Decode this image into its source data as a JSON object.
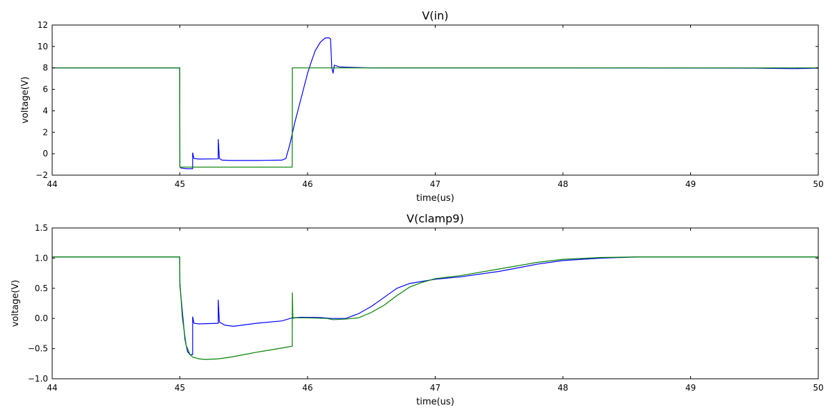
{
  "chart_data": [
    {
      "type": "line",
      "title": "V(in)",
      "xlabel": "time(us)",
      "ylabel": "voltage(V)",
      "xlim": [
        44,
        50
      ],
      "ylim": [
        -2,
        12
      ],
      "xticks": [
        "44",
        "45",
        "46",
        "47",
        "48",
        "49",
        "50"
      ],
      "yticks": [
        "−2",
        "0",
        "2",
        "4",
        "6",
        "8",
        "10",
        "12"
      ],
      "grid": false,
      "series": [
        {
          "color": "#0000ff",
          "points": [
            [
              44.0,
              8.0
            ],
            [
              44.999,
              8.0
            ],
            [
              45.0,
              -1.2
            ],
            [
              45.01,
              -1.35
            ],
            [
              45.05,
              -1.4
            ],
            [
              45.1,
              -1.4
            ],
            [
              45.1,
              0.1
            ],
            [
              45.11,
              -0.45
            ],
            [
              45.15,
              -0.5
            ],
            [
              45.3,
              -0.48
            ],
            [
              45.3,
              1.35
            ],
            [
              45.31,
              -0.45
            ],
            [
              45.33,
              -0.6
            ],
            [
              45.4,
              -0.63
            ],
            [
              45.6,
              -0.63
            ],
            [
              45.8,
              -0.6
            ],
            [
              45.83,
              -0.45
            ],
            [
              45.86,
              0.8
            ],
            [
              45.9,
              2.9
            ],
            [
              45.95,
              5.2
            ],
            [
              46.0,
              7.5
            ],
            [
              46.03,
              8.6
            ],
            [
              46.06,
              9.6
            ],
            [
              46.1,
              10.4
            ],
            [
              46.14,
              10.8
            ],
            [
              46.17,
              10.8
            ],
            [
              46.18,
              10.7
            ],
            [
              46.19,
              8.0
            ],
            [
              46.2,
              7.5
            ],
            [
              46.21,
              8.25
            ],
            [
              46.25,
              8.1
            ],
            [
              46.35,
              8.05
            ],
            [
              46.5,
              8.0
            ],
            [
              48.0,
              8.0
            ],
            [
              49.5,
              7.98
            ],
            [
              49.8,
              7.93
            ],
            [
              50.0,
              7.98
            ]
          ]
        },
        {
          "color": "#008000",
          "points": [
            [
              44.0,
              8.0
            ],
            [
              44.999,
              8.0
            ],
            [
              45.0,
              -1.25
            ],
            [
              45.88,
              -1.25
            ],
            [
              45.881,
              8.0
            ],
            [
              50.0,
              8.0
            ]
          ]
        }
      ]
    },
    {
      "type": "line",
      "title": "V(clamp9)",
      "xlabel": "time(us)",
      "ylabel": "voltage(V)",
      "xlim": [
        44,
        50
      ],
      "ylim": [
        -1.0,
        1.5
      ],
      "xticks": [
        "44",
        "45",
        "46",
        "47",
        "48",
        "49",
        "50"
      ],
      "yticks": [
        "−1.0",
        "−0.5",
        "0.0",
        "0.5",
        "1.0",
        "1.5"
      ],
      "grid": false,
      "series": [
        {
          "color": "#0000ff",
          "points": [
            [
              44.0,
              1.02
            ],
            [
              44.999,
              1.02
            ],
            [
              45.0,
              0.55
            ],
            [
              45.02,
              0.1
            ],
            [
              45.04,
              -0.35
            ],
            [
              45.06,
              -0.55
            ],
            [
              45.08,
              -0.6
            ],
            [
              45.1,
              -0.6
            ],
            [
              45.1,
              0.03
            ],
            [
              45.11,
              -0.08
            ],
            [
              45.15,
              -0.09
            ],
            [
              45.3,
              -0.08
            ],
            [
              45.3,
              0.31
            ],
            [
              45.31,
              -0.06
            ],
            [
              45.35,
              -0.11
            ],
            [
              45.42,
              -0.13
            ],
            [
              45.6,
              -0.08
            ],
            [
              45.8,
              -0.04
            ],
            [
              45.88,
              0.01
            ],
            [
              45.95,
              0.02
            ],
            [
              46.1,
              0.015
            ],
            [
              46.18,
              0.0
            ],
            [
              46.3,
              0.0
            ],
            [
              46.4,
              0.08
            ],
            [
              46.5,
              0.2
            ],
            [
              46.6,
              0.35
            ],
            [
              46.7,
              0.5
            ],
            [
              46.8,
              0.58
            ],
            [
              47.0,
              0.65
            ],
            [
              47.2,
              0.69
            ],
            [
              47.5,
              0.78
            ],
            [
              47.8,
              0.9
            ],
            [
              48.0,
              0.96
            ],
            [
              48.3,
              1.0
            ],
            [
              48.6,
              1.02
            ],
            [
              50.0,
              1.02
            ]
          ]
        },
        {
          "color": "#008000",
          "points": [
            [
              44.0,
              1.02
            ],
            [
              44.999,
              1.02
            ],
            [
              45.0,
              0.6
            ],
            [
              45.02,
              0.0
            ],
            [
              45.05,
              -0.45
            ],
            [
              45.08,
              -0.6
            ],
            [
              45.1,
              -0.64
            ],
            [
              45.15,
              -0.67
            ],
            [
              45.2,
              -0.68
            ],
            [
              45.3,
              -0.67
            ],
            [
              45.4,
              -0.64
            ],
            [
              45.6,
              -0.56
            ],
            [
              45.8,
              -0.49
            ],
            [
              45.88,
              -0.46
            ],
            [
              45.881,
              0.43
            ],
            [
              45.885,
              0.0
            ],
            [
              45.9,
              0.01
            ],
            [
              46.0,
              0.01
            ],
            [
              46.15,
              0.0
            ],
            [
              46.2,
              -0.02
            ],
            [
              46.3,
              -0.01
            ],
            [
              46.4,
              0.01
            ],
            [
              46.5,
              0.1
            ],
            [
              46.6,
              0.22
            ],
            [
              46.7,
              0.38
            ],
            [
              46.8,
              0.52
            ],
            [
              46.9,
              0.6
            ],
            [
              47.0,
              0.66
            ],
            [
              47.2,
              0.71
            ],
            [
              47.5,
              0.82
            ],
            [
              47.8,
              0.93
            ],
            [
              48.0,
              0.98
            ],
            [
              48.3,
              1.01
            ],
            [
              48.6,
              1.02
            ],
            [
              50.0,
              1.02
            ]
          ]
        }
      ]
    }
  ]
}
